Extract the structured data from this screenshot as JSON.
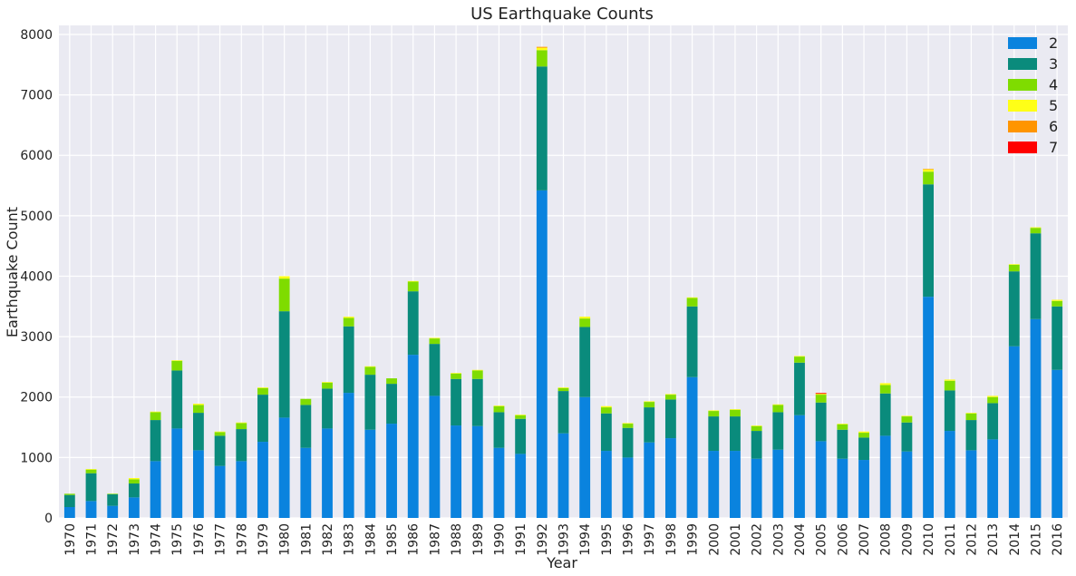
{
  "chart_data": {
    "type": "bar",
    "stacked": true,
    "title": "US Earthquake Counts",
    "xlabel": "Year",
    "ylabel": "Earthquake Count",
    "ylim": [
      0,
      8150
    ],
    "yticks": [
      0,
      1000,
      2000,
      3000,
      4000,
      5000,
      6000,
      7000,
      8000
    ],
    "grid": true,
    "legend_position": "top-right",
    "categories": [
      "1970",
      "1971",
      "1972",
      "1973",
      "1974",
      "1975",
      "1976",
      "1977",
      "1978",
      "1979",
      "1980",
      "1981",
      "1982",
      "1983",
      "1984",
      "1985",
      "1986",
      "1987",
      "1988",
      "1989",
      "1990",
      "1991",
      "1992",
      "1993",
      "1994",
      "1995",
      "1996",
      "1997",
      "1998",
      "1999",
      "2000",
      "2001",
      "2002",
      "2003",
      "2004",
      "2005",
      "2006",
      "2007",
      "2008",
      "2009",
      "2010",
      "2011",
      "2012",
      "2013",
      "2014",
      "2015",
      "2016"
    ],
    "series": [
      {
        "name": "2",
        "color": "#0a83de",
        "values": [
          180,
          280,
          200,
          340,
          940,
          1480,
          1120,
          860,
          940,
          1260,
          1660,
          1160,
          1480,
          2070,
          1460,
          1560,
          2700,
          2020,
          1530,
          1520,
          1160,
          1060,
          5420,
          1400,
          2000,
          1110,
          1000,
          1250,
          1320,
          2330,
          1110,
          1110,
          980,
          1130,
          1700,
          1270,
          980,
          960,
          1360,
          1100,
          3660,
          1440,
          1120,
          1300,
          2840,
          3290,
          2450
        ]
      },
      {
        "name": "3",
        "color": "#0a8b7c",
        "values": [
          200,
          460,
          190,
          230,
          680,
          960,
          620,
          500,
          530,
          780,
          1760,
          710,
          660,
          1100,
          910,
          660,
          1050,
          860,
          770,
          780,
          590,
          580,
          2050,
          700,
          1160,
          620,
          490,
          580,
          640,
          1170,
          570,
          570,
          460,
          620,
          870,
          640,
          480,
          370,
          700,
          480,
          1860,
          670,
          500,
          600,
          1240,
          1420,
          1050
        ]
      },
      {
        "name": "4",
        "color": "#7fdc00",
        "values": [
          20,
          60,
          10,
          70,
          130,
          160,
          130,
          60,
          100,
          110,
          540,
          100,
          100,
          140,
          130,
          90,
          160,
          90,
          90,
          140,
          100,
          60,
          270,
          50,
          140,
          100,
          70,
          90,
          80,
          140,
          90,
          110,
          80,
          120,
          100,
          130,
          90,
          80,
          140,
          100,
          210,
          160,
          110,
          100,
          110,
          90,
          90
        ]
      },
      {
        "name": "5",
        "color": "#ffff17",
        "values": [
          0,
          10,
          0,
          20,
          10,
          10,
          20,
          10,
          10,
          10,
          40,
          0,
          10,
          20,
          10,
          0,
          10,
          10,
          10,
          10,
          10,
          10,
          40,
          10,
          30,
          20,
          10,
          10,
          10,
          10,
          10,
          10,
          10,
          10,
          10,
          10,
          10,
          20,
          30,
          10,
          40,
          20,
          10,
          20,
          10,
          10,
          20
        ]
      },
      {
        "name": "6",
        "color": "#ff9500",
        "values": [
          0,
          0,
          0,
          0,
          0,
          0,
          0,
          0,
          0,
          0,
          0,
          0,
          0,
          0,
          0,
          0,
          0,
          0,
          0,
          0,
          0,
          0,
          15,
          0,
          0,
          0,
          0,
          0,
          0,
          0,
          0,
          0,
          0,
          0,
          0,
          10,
          0,
          0,
          0,
          0,
          5,
          0,
          0,
          0,
          0,
          0,
          0
        ]
      },
      {
        "name": "7",
        "color": "#ff0000",
        "values": [
          0,
          0,
          0,
          0,
          0,
          0,
          0,
          0,
          0,
          0,
          0,
          0,
          0,
          0,
          0,
          0,
          0,
          0,
          0,
          0,
          0,
          0,
          0,
          0,
          0,
          0,
          0,
          0,
          0,
          0,
          0,
          0,
          0,
          0,
          0,
          10,
          0,
          0,
          0,
          0,
          0,
          0,
          0,
          0,
          0,
          0,
          0
        ]
      }
    ]
  }
}
